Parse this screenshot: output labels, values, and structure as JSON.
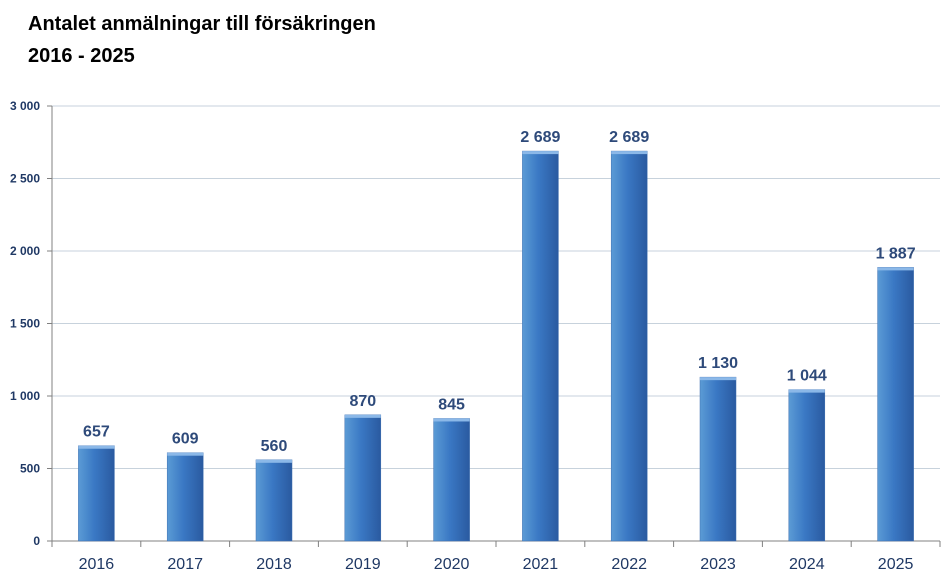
{
  "chart_data": {
    "type": "bar",
    "title_lines": [
      "Antalet anmälningar till försäkringen",
      "2016 - 2025"
    ],
    "xlabel": "",
    "ylabel": "",
    "categories": [
      "2016",
      "2017",
      "2018",
      "2019",
      "2020",
      "2021",
      "2022",
      "2023",
      "2024",
      "2025"
    ],
    "values": [
      657,
      609,
      560,
      870,
      845,
      2689,
      2689,
      1130,
      1044,
      1887
    ],
    "value_labels": [
      "657",
      "609",
      "560",
      "870",
      "845",
      "2 689",
      "2 689",
      "1 130",
      "1 044",
      "1 887"
    ],
    "ylim": [
      0,
      3000
    ],
    "yticks": [
      0,
      500,
      1000,
      1500,
      2000,
      2500,
      3000
    ],
    "ytick_labels": [
      "0",
      "500",
      "1 000",
      "1 500",
      "2 000",
      "2 500",
      "3 000"
    ],
    "grid": true,
    "legend": "none",
    "colors": {
      "bar_light": "#5b9bd5",
      "bar_mid": "#3a78c4",
      "bar_dark": "#2a5aa0",
      "grid": "#c7d2dc",
      "axis_text": "#1f3864",
      "data_label": "#2e4a7a"
    }
  }
}
